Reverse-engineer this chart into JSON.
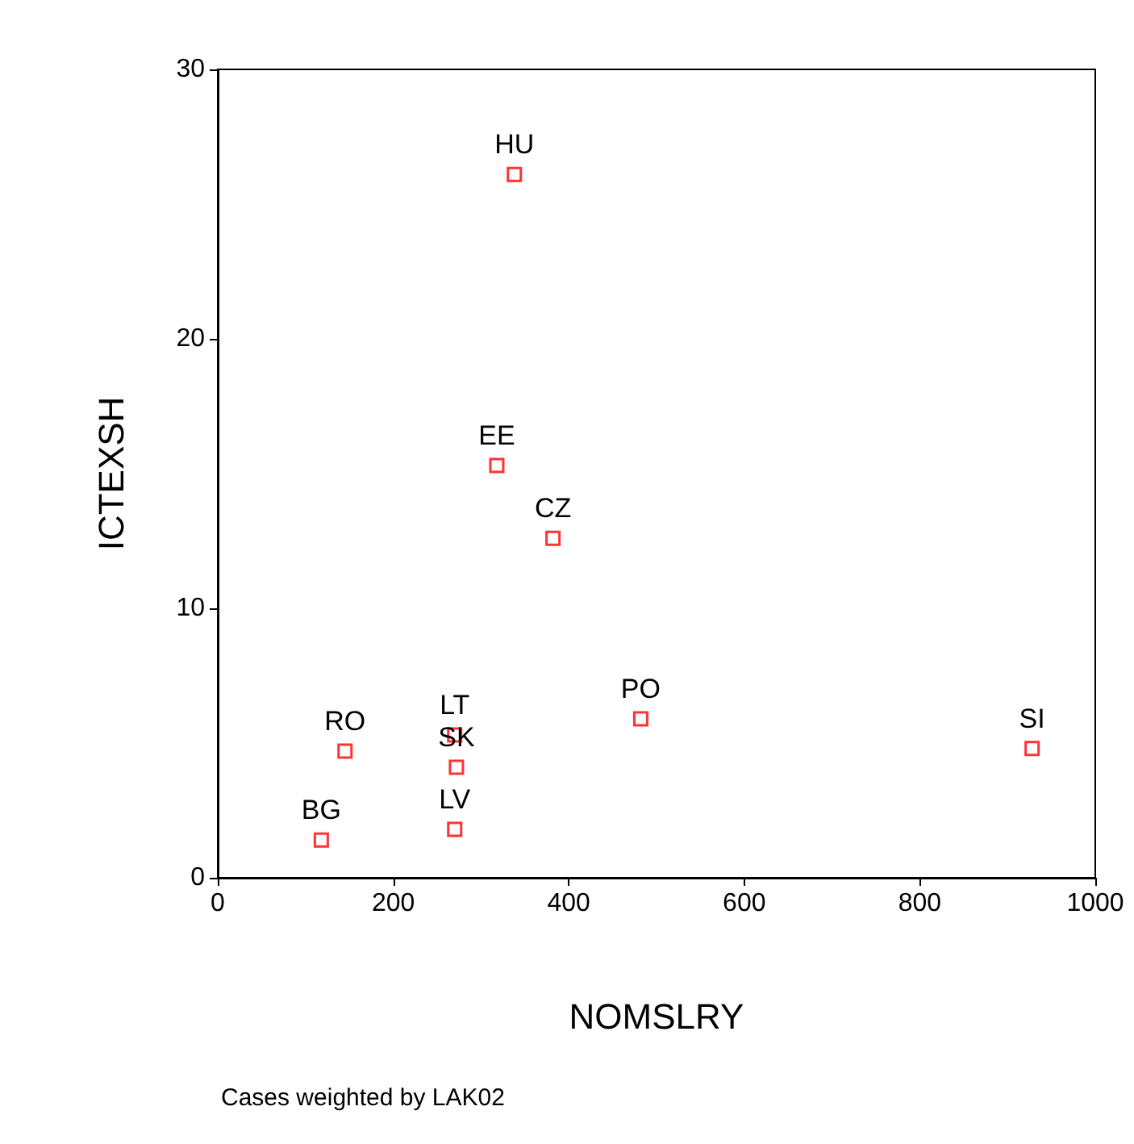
{
  "chart_data": {
    "type": "scatter",
    "xlabel": "NOMSLRY",
    "ylabel": "ICTEXSH",
    "x": [
      338,
      318,
      382,
      482,
      928,
      145,
      270,
      272,
      270,
      118
    ],
    "values": [
      26.1,
      15.3,
      12.6,
      5.9,
      4.8,
      4.7,
      5.3,
      4.1,
      1.8,
      1.4
    ],
    "color": "#ff0000",
    "marker": "square",
    "grid": false,
    "xlim": [
      0,
      1000
    ],
    "xticks": [
      0,
      200,
      400,
      600,
      800,
      1000
    ],
    "ylim": [
      0,
      30
    ],
    "yticks": [
      0,
      10,
      20,
      30
    ],
    "annotations": [
      {
        "text": "HU",
        "x": 338,
        "y": 26.1
      },
      {
        "text": "EE",
        "x": 318,
        "y": 15.3
      },
      {
        "text": "CZ",
        "x": 382,
        "y": 12.6
      },
      {
        "text": "PO",
        "x": 482,
        "y": 5.9
      },
      {
        "text": "SI",
        "x": 928,
        "y": 4.8
      },
      {
        "text": "RO",
        "x": 145,
        "y": 4.7
      },
      {
        "text": "LT",
        "x": 270,
        "y": 5.3
      },
      {
        "text": "SK",
        "x": 272,
        "y": 4.1
      },
      {
        "text": "LV",
        "x": 270,
        "y": 1.8
      },
      {
        "text": "BG",
        "x": 118,
        "y": 1.4
      },
      "Cases weighted by LAK02"
    ]
  }
}
